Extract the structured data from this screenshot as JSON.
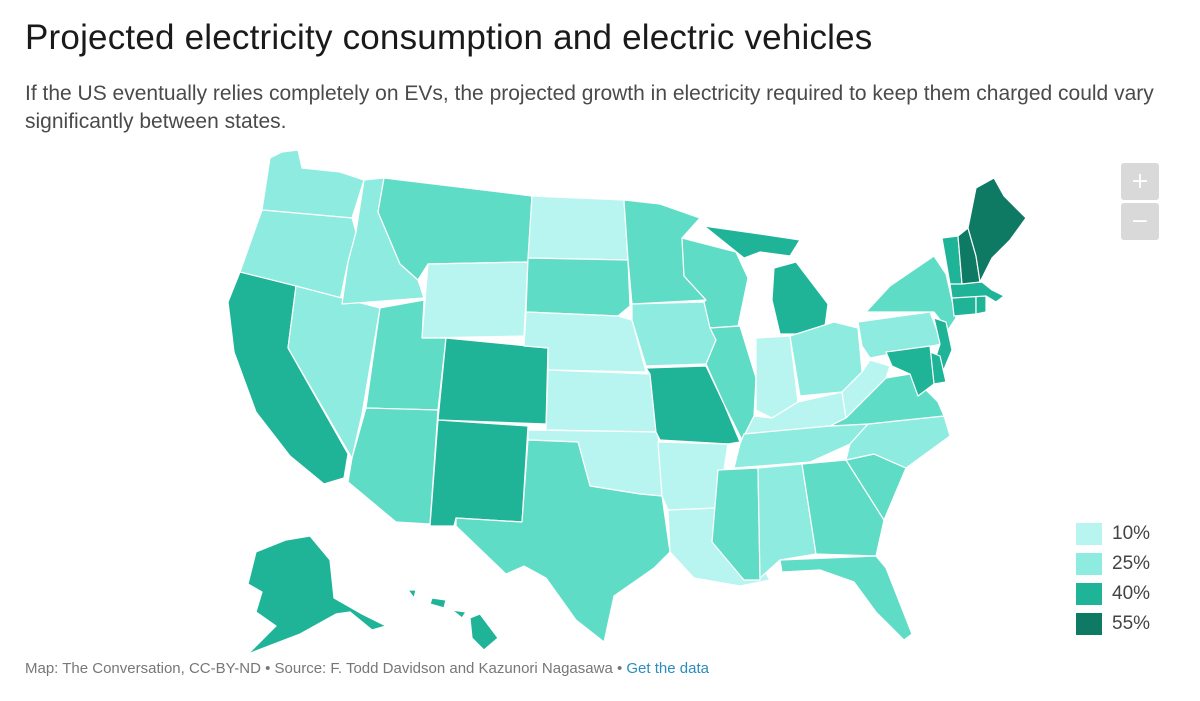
{
  "title": "Projected electricity consumption and electric vehicles",
  "subtitle": "If the US eventually relies completely on EVs, the projected growth in electricity required to keep them charged could vary significantly between states.",
  "zoom": {
    "in_label": "+",
    "out_label": "−"
  },
  "colors": {
    "c10": "#b8f5f0",
    "c25": "#8debe0",
    "c32": "#5fdcc6",
    "c40": "#1fb497",
    "c55": "#0e7a63"
  },
  "legend": [
    {
      "label": "10%",
      "color": "#b8f5f0"
    },
    {
      "label": "25%",
      "color": "#8debe0"
    },
    {
      "label": "40%",
      "color": "#1fb497"
    },
    {
      "label": "55%",
      "color": "#0e7a63"
    }
  ],
  "footer": {
    "credit": "Map: The Conversation, CC-BY-ND",
    "separator": " • ",
    "source": "Source: F. Todd Davidson and Kazunori Nagasawa",
    "link": "Get the data"
  },
  "states": [
    {
      "id": "WA",
      "name": "Washington",
      "level": "c25"
    },
    {
      "id": "OR",
      "name": "Oregon",
      "level": "c25"
    },
    {
      "id": "CA",
      "name": "California",
      "level": "c40"
    },
    {
      "id": "NV",
      "name": "Nevada",
      "level": "c25"
    },
    {
      "id": "ID",
      "name": "Idaho",
      "level": "c25"
    },
    {
      "id": "MT",
      "name": "Montana",
      "level": "c32"
    },
    {
      "id": "WY",
      "name": "Wyoming",
      "level": "c10"
    },
    {
      "id": "UT",
      "name": "Utah",
      "level": "c32"
    },
    {
      "id": "AZ",
      "name": "Arizona",
      "level": "c32"
    },
    {
      "id": "CO",
      "name": "Colorado",
      "level": "c40"
    },
    {
      "id": "NM",
      "name": "New Mexico",
      "level": "c40"
    },
    {
      "id": "ND",
      "name": "North Dakota",
      "level": "c10"
    },
    {
      "id": "SD",
      "name": "South Dakota",
      "level": "c32"
    },
    {
      "id": "NE",
      "name": "Nebraska",
      "level": "c10"
    },
    {
      "id": "KS",
      "name": "Kansas",
      "level": "c10"
    },
    {
      "id": "OK",
      "name": "Oklahoma",
      "level": "c10"
    },
    {
      "id": "TX",
      "name": "Texas",
      "level": "c32"
    },
    {
      "id": "MN",
      "name": "Minnesota",
      "level": "c32"
    },
    {
      "id": "IA",
      "name": "Iowa",
      "level": "c25"
    },
    {
      "id": "MO",
      "name": "Missouri",
      "level": "c40"
    },
    {
      "id": "AR",
      "name": "Arkansas",
      "level": "c10"
    },
    {
      "id": "LA",
      "name": "Louisiana",
      "level": "c10"
    },
    {
      "id": "WI",
      "name": "Wisconsin",
      "level": "c32"
    },
    {
      "id": "IL",
      "name": "Illinois",
      "level": "c32"
    },
    {
      "id": "MI",
      "name": "Michigan",
      "level": "c40"
    },
    {
      "id": "IN",
      "name": "Indiana",
      "level": "c10"
    },
    {
      "id": "OH",
      "name": "Ohio",
      "level": "c25"
    },
    {
      "id": "KY",
      "name": "Kentucky",
      "level": "c10"
    },
    {
      "id": "TN",
      "name": "Tennessee",
      "level": "c25"
    },
    {
      "id": "MS",
      "name": "Mississippi",
      "level": "c32"
    },
    {
      "id": "AL",
      "name": "Alabama",
      "level": "c25"
    },
    {
      "id": "GA",
      "name": "Georgia",
      "level": "c32"
    },
    {
      "id": "FL",
      "name": "Florida",
      "level": "c32"
    },
    {
      "id": "SC",
      "name": "South Carolina",
      "level": "c32"
    },
    {
      "id": "NC",
      "name": "North Carolina",
      "level": "c25"
    },
    {
      "id": "VA",
      "name": "Virginia",
      "level": "c32"
    },
    {
      "id": "WV",
      "name": "West Virginia",
      "level": "c10"
    },
    {
      "id": "PA",
      "name": "Pennsylvania",
      "level": "c25"
    },
    {
      "id": "NY",
      "name": "New York",
      "level": "c32"
    },
    {
      "id": "NJ",
      "name": "New Jersey",
      "level": "c40"
    },
    {
      "id": "DE",
      "name": "Delaware",
      "level": "c40"
    },
    {
      "id": "MD",
      "name": "Maryland",
      "level": "c40"
    },
    {
      "id": "CT",
      "name": "Connecticut",
      "level": "c40"
    },
    {
      "id": "RI",
      "name": "Rhode Island",
      "level": "c40"
    },
    {
      "id": "MA",
      "name": "Massachusetts",
      "level": "c40"
    },
    {
      "id": "VT",
      "name": "Vermont",
      "level": "c40"
    },
    {
      "id": "NH",
      "name": "New Hampshire",
      "level": "c55"
    },
    {
      "id": "ME",
      "name": "Maine",
      "level": "c55"
    },
    {
      "id": "AK",
      "name": "Alaska",
      "level": "c40"
    },
    {
      "id": "HI",
      "name": "Hawaii",
      "level": "c40"
    }
  ]
}
